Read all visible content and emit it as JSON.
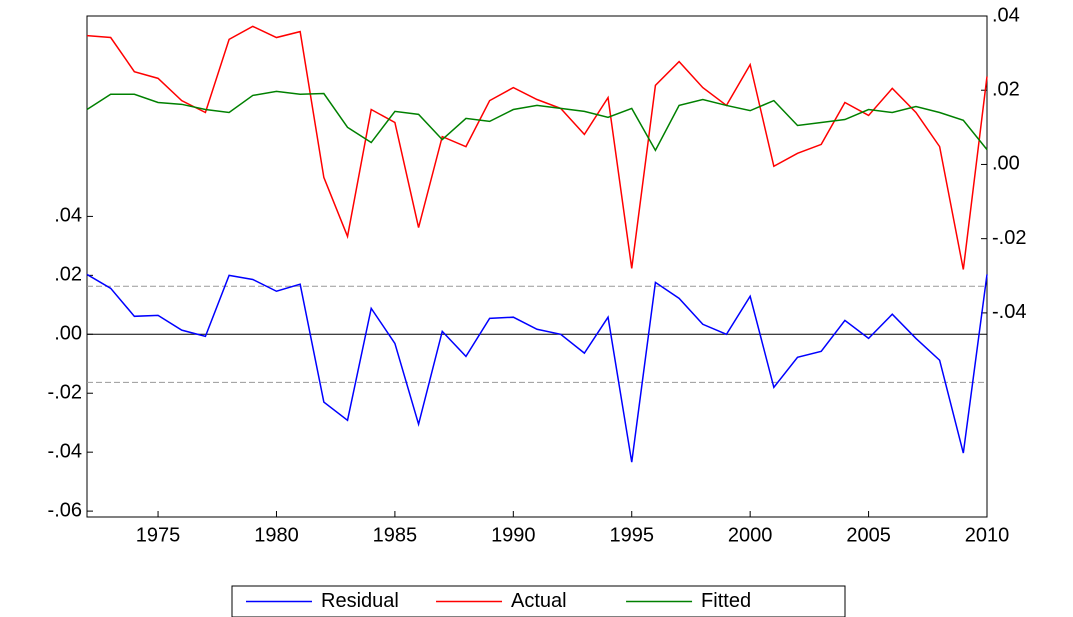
{
  "chart_data": {
    "type": "line",
    "x": [
      1972,
      1973,
      1974,
      1975,
      1976,
      1977,
      1978,
      1979,
      1980,
      1981,
      1982,
      1983,
      1984,
      1985,
      1986,
      1987,
      1988,
      1989,
      1990,
      1991,
      1992,
      1993,
      1994,
      1995,
      1996,
      1997,
      1998,
      1999,
      2000,
      2001,
      2002,
      2003,
      2004,
      2005,
      2006,
      2007,
      2008,
      2009,
      2010
    ],
    "xlim": [
      1972,
      2010
    ],
    "xticks": [
      1975,
      1980,
      1985,
      1990,
      1995,
      2000,
      2005,
      2010
    ],
    "ylim": [
      -0.062,
      0.108
    ],
    "yticks": [
      {
        "value": -0.06,
        "label": "-.06"
      },
      {
        "value": -0.04,
        "label": "-.04"
      },
      {
        "value": -0.02,
        "label": "-.02"
      },
      {
        "value": 0,
        "label": ".00"
      },
      {
        "value": 0.02,
        "label": ".02"
      },
      {
        "value": 0.04,
        "label": ".04"
      }
    ],
    "y2lim": [
      -0.095,
      0.04
    ],
    "y2ticks": [
      {
        "value": -0.04,
        "label": "-.04"
      },
      {
        "value": -0.02,
        "label": "-.02"
      },
      {
        "value": 0,
        "label": ".00"
      },
      {
        "value": 0.02,
        "label": ".02"
      },
      {
        "value": 0.04,
        "label": ".04"
      }
    ],
    "zero_line": true,
    "std_band": 0.0163,
    "series": [
      {
        "name": "Residual",
        "color": "#0000ff",
        "axis": "y",
        "values": [
          0.0203,
          0.0156,
          0.0061,
          0.0064,
          0.0014,
          -0.0007,
          0.02,
          0.0186,
          0.0146,
          0.017,
          -0.023,
          -0.0292,
          0.0088,
          -0.0031,
          -0.0305,
          0.001,
          -0.0075,
          0.0054,
          0.0058,
          0.0017,
          0,
          -0.0064,
          0.0058,
          -0.0434,
          0.0176,
          0.0122,
          0.0034,
          0,
          0.0129,
          -0.018,
          -0.0078,
          -0.0058,
          0.0047,
          -0.0014,
          0.0068,
          -0.0014,
          -0.0088,
          -0.0403,
          0.0203
        ]
      },
      {
        "name": "Actual",
        "color": "#ff0000",
        "axis": "y2",
        "values": [
          0.0347,
          0.0342,
          0.025,
          0.0232,
          0.0172,
          0.014,
          0.0337,
          0.0372,
          0.0342,
          0.0358,
          -0.0035,
          -0.0194,
          0.0148,
          0.0113,
          -0.017,
          0.0075,
          0.0048,
          0.0172,
          0.0207,
          0.0175,
          0.0151,
          0.0081,
          0.018,
          -0.028,
          0.0213,
          0.0277,
          0.0207,
          0.0159,
          0.0269,
          -0.0005,
          0.003,
          0.0054,
          0.0167,
          0.0132,
          0.0205,
          0.014,
          0.0048,
          -0.0283,
          0.0237
        ]
      },
      {
        "name": "Fitted",
        "color": "#008000",
        "axis": "y2",
        "values": [
          0.0148,
          0.0189,
          0.0189,
          0.0167,
          0.0162,
          0.0148,
          0.014,
          0.0186,
          0.0197,
          0.0189,
          0.0191,
          0.01,
          0.0059,
          0.0143,
          0.0135,
          0.0067,
          0.0124,
          0.0116,
          0.0148,
          0.0159,
          0.0151,
          0.0143,
          0.0127,
          0.0151,
          0.0038,
          0.0159,
          0.0175,
          0.0159,
          0.0145,
          0.0172,
          0.0105,
          0.0113,
          0.0121,
          0.0148,
          0.014,
          0.0156,
          0.014,
          0.0119,
          0.004
        ]
      }
    ]
  }
}
